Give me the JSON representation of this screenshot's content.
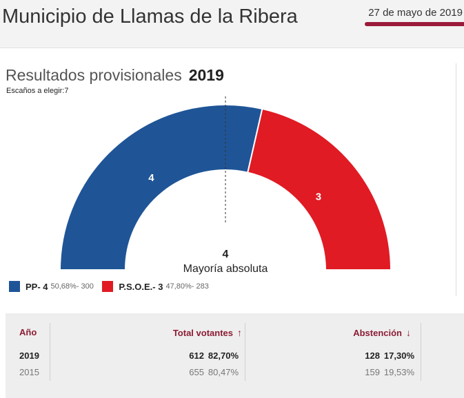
{
  "header": {
    "title": "Municipio de Llamas de la Ribera",
    "date": "27 de mayo de 2019"
  },
  "results": {
    "label": "Resultados provisionales",
    "year": "2019",
    "seats_note": "Escaños a elegir:7"
  },
  "colors": {
    "pp": "#1f5597",
    "psoe": "#e01b24",
    "accent": "#9b1b3a"
  },
  "chart_data": {
    "type": "pie",
    "subtype": "parliament-hemicycle",
    "total_seats": 7,
    "majority": {
      "value": "4",
      "label": "Mayoría absoluta"
    },
    "series": [
      {
        "name": "PP",
        "seats": 4,
        "percent": "50,68%",
        "votes": 300,
        "color": "#1f5597"
      },
      {
        "name": "P.S.O.E.",
        "seats": 3,
        "percent": "47,80%",
        "votes": 283,
        "color": "#e01b24"
      }
    ]
  },
  "legend": [
    {
      "party": "PP- 4",
      "meta": "50,68%- 300"
    },
    {
      "party": "P.S.O.E.- 3",
      "meta": "47,80%- 283"
    }
  ],
  "table": {
    "headers": {
      "year": "Año",
      "total": "Total votantes",
      "abstention": "Abstención"
    },
    "header_icons": {
      "total": "arrow-up-icon",
      "abstention": "arrow-down-icon"
    },
    "rows": [
      {
        "year": "2019",
        "total_votes": "612",
        "total_pct": "82,70%",
        "abst_votes": "128",
        "abst_pct": "17,30%"
      },
      {
        "year": "2015",
        "total_votes": "655",
        "total_pct": "80,47%",
        "abst_votes": "159",
        "abst_pct": "19,53%"
      }
    ]
  }
}
